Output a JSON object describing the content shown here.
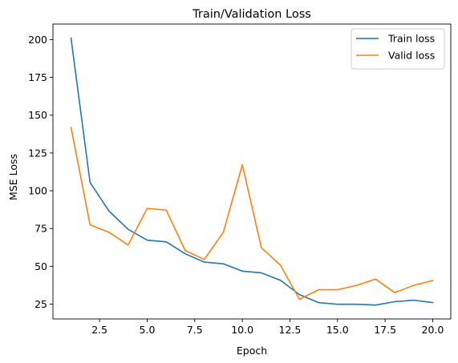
{
  "chart_data": {
    "type": "line",
    "title": "Train/Validation Loss",
    "xlabel": "Epoch",
    "ylabel": "MSE Loss",
    "xlim": [
      0.05,
      20.95
    ],
    "ylim": [
      15.2,
      210.3
    ],
    "xticks": [
      2.5,
      5.0,
      7.5,
      10.0,
      12.5,
      15.0,
      17.5,
      20.0
    ],
    "xtick_labels": [
      "2.5",
      "5.0",
      "7.5",
      "10.0",
      "12.5",
      "15.0",
      "17.5",
      "20.0"
    ],
    "yticks": [
      25,
      50,
      75,
      100,
      125,
      150,
      175,
      200
    ],
    "ytick_labels": [
      "25",
      "50",
      "75",
      "100",
      "125",
      "150",
      "175",
      "200"
    ],
    "grid": false,
    "legend_position": "top-right",
    "x": [
      1,
      2,
      3,
      4,
      5,
      6,
      7,
      8,
      9,
      10,
      11,
      12,
      13,
      14,
      15,
      16,
      17,
      18,
      19,
      20
    ],
    "series": [
      {
        "name": "Train loss",
        "color": "#1f77b4",
        "values": [
          201,
          105.5,
          86.5,
          74.5,
          67.3,
          66.2,
          58.3,
          52.8,
          51.7,
          46.8,
          45.7,
          40.8,
          31.3,
          26,
          24.9,
          24.9,
          24.4,
          26.6,
          27.6,
          26
        ]
      },
      {
        "name": "Valid loss",
        "color": "#ff7f0e",
        "values": [
          141.9,
          77.5,
          72.5,
          64.1,
          88.3,
          87.2,
          60.4,
          54.6,
          72.5,
          117.2,
          62.3,
          50.8,
          28.2,
          34.5,
          34.5,
          37.4,
          41.6,
          32.6,
          37.4,
          40.6
        ]
      }
    ]
  }
}
